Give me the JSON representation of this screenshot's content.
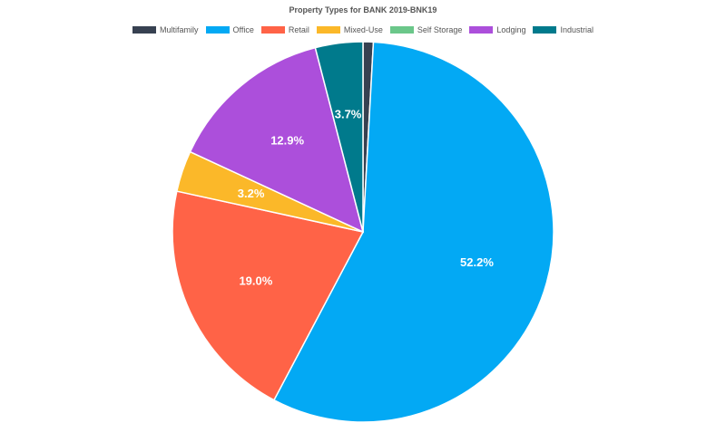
{
  "chart_data": {
    "type": "pie",
    "title": "Property Types for BANK 2019-BNK19",
    "legend_position": "top",
    "slices": [
      {
        "name": "Multifamily",
        "value": 0.8,
        "label": "",
        "color": "#374151"
      },
      {
        "name": "Office",
        "value": 52.2,
        "label": "52.2%",
        "color": "#03A9F4"
      },
      {
        "name": "Retail",
        "value": 19.0,
        "label": "19.0%",
        "color": "#FF6347"
      },
      {
        "name": "Mixed-Use",
        "value": 3.2,
        "label": "3.2%",
        "color": "#FBB829"
      },
      {
        "name": "Self Storage",
        "value": 0.0,
        "label": "",
        "color": "#6BC78A"
      },
      {
        "name": "Lodging",
        "value": 12.9,
        "label": "12.9%",
        "color": "#AC4FDB"
      },
      {
        "name": "Industrial",
        "value": 3.7,
        "label": "3.7%",
        "color": "#007A8C"
      }
    ]
  }
}
